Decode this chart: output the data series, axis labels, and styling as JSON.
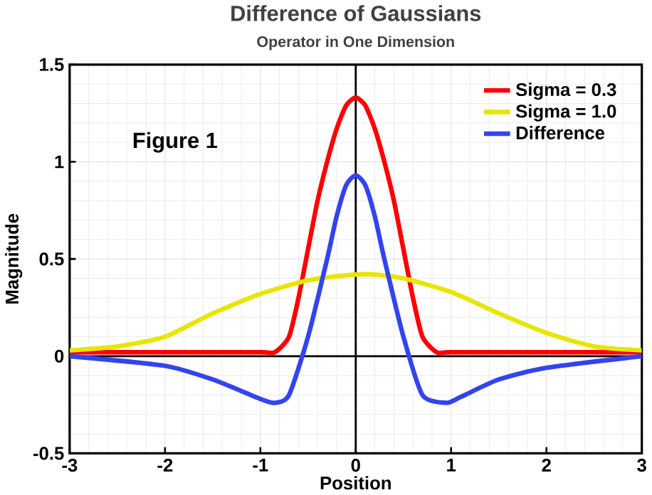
{
  "chart_data": {
    "type": "line",
    "title": "Difference of Gaussians",
    "subtitle": "Operator in One Dimension",
    "xlabel": "Position",
    "ylabel": "Magnitude",
    "annotations": [
      "Figure 1"
    ],
    "xlim": [
      -3,
      3
    ],
    "ylim": [
      -0.5,
      1.5
    ],
    "xticks": [
      -3,
      -2,
      -1,
      0,
      1,
      2,
      3
    ],
    "yticks": [
      -0.5,
      0,
      0.5,
      1,
      1.5
    ],
    "grid": true,
    "legend": "top right",
    "marker": "none",
    "line_style": "solid",
    "series": [
      {
        "name": "Sigma = 0.3",
        "color": "#ff0000",
        "x": [
          -3,
          -2,
          -1,
          -0.85,
          -0.7,
          -0.6,
          -0.5,
          -0.4,
          -0.3,
          -0.2,
          -0.1,
          0,
          0.1,
          0.2,
          0.3,
          0.4,
          0.5,
          0.6,
          0.7,
          0.85,
          1,
          2,
          3
        ],
        "values": [
          0.02,
          0.02,
          0.02,
          0.02,
          0.1,
          0.3,
          0.55,
          0.8,
          1.0,
          1.17,
          1.29,
          1.33,
          1.29,
          1.17,
          1.0,
          0.8,
          0.55,
          0.3,
          0.1,
          0.02,
          0.02,
          0.02,
          0.02
        ]
      },
      {
        "name": "Sigma = 1.0",
        "color": "#e6e600",
        "x": [
          -3,
          -2.5,
          -2,
          -1.5,
          -1,
          -0.5,
          0,
          0.2,
          0.5,
          1,
          1.5,
          2,
          2.5,
          3
        ],
        "values": [
          0.03,
          0.05,
          0.1,
          0.22,
          0.32,
          0.39,
          0.42,
          0.42,
          0.4,
          0.33,
          0.22,
          0.12,
          0.05,
          0.03
        ]
      },
      {
        "name": "Difference",
        "color": "#3344ee",
        "x": [
          -3,
          -2,
          -1.5,
          -1,
          -0.85,
          -0.7,
          -0.5,
          -0.3,
          -0.2,
          -0.1,
          0,
          0.1,
          0.2,
          0.3,
          0.5,
          0.7,
          0.95,
          1.1,
          1.5,
          2,
          3
        ],
        "values": [
          0,
          -0.05,
          -0.12,
          -0.22,
          -0.24,
          -0.2,
          0.1,
          0.5,
          0.72,
          0.88,
          0.93,
          0.88,
          0.72,
          0.5,
          0.1,
          -0.2,
          -0.24,
          -0.21,
          -0.12,
          -0.06,
          0
        ]
      }
    ]
  }
}
